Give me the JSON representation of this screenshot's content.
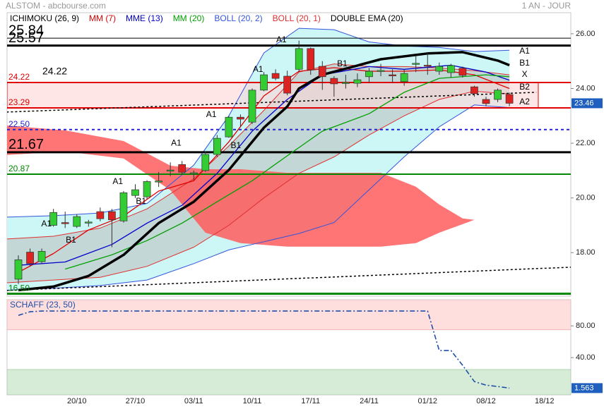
{
  "chart_data": [
    {
      "type": "candlestick",
      "title": "ALSTOM - abcbourse.com",
      "period": "1 AN - JOUR",
      "categories": [
        null,
        null,
        null,
        null,
        null,
        "20/10",
        null,
        null,
        null,
        null,
        "27/10",
        null,
        null,
        null,
        null,
        "03/11",
        null,
        null,
        null,
        null,
        "10/11",
        null,
        null,
        null,
        null,
        "17/11",
        null,
        null,
        null,
        null,
        "24/11",
        null,
        null,
        null,
        null,
        "01/12",
        null,
        null,
        null,
        null,
        "08/12",
        null,
        null,
        null,
        null,
        "18/12",
        null,
        null
      ],
      "open": [
        17.03,
        18.02,
        17.67,
        19.0,
        19.1,
        18.96,
        19.1,
        19.5,
        19.5,
        19.16,
        20.09,
        20.04,
        20.6,
        21.0,
        21.22,
        20.9,
        21.0,
        21.59,
        22.23,
        22.95,
        22.77,
        23.94,
        24.55,
        24.45,
        24.7,
        25.46,
        24.81,
        24.37,
        24.2,
        24.19,
        24.43,
        24.63,
        24.5,
        24.25,
        24.9,
        24.85,
        24.63,
        24.58,
        24.74,
        24.06,
        23.6,
        23.6,
        23.78,
        null,
        null,
        null,
        null,
        null
      ],
      "high": [
        17.9,
        18.15,
        18.15,
        19.6,
        19.5,
        19.4,
        19.2,
        19.65,
        19.6,
        20.25,
        20.5,
        20.65,
        20.95,
        21.3,
        21.35,
        21.0,
        21.7,
        22.3,
        23.0,
        23.05,
        24.0,
        24.6,
        24.7,
        24.65,
        25.75,
        25.5,
        25.0,
        24.45,
        24.5,
        24.55,
        24.75,
        24.9,
        24.7,
        24.7,
        25.2,
        25.3,
        24.95,
        24.9,
        24.8,
        24.1,
        23.7,
        24.0,
        23.85,
        null,
        null,
        null,
        null,
        null
      ],
      "low": [
        16.85,
        17.5,
        17.6,
        18.95,
        18.9,
        18.9,
        18.95,
        19.15,
        18.2,
        19.1,
        20.0,
        19.95,
        20.4,
        20.8,
        20.85,
        20.65,
        20.95,
        21.5,
        22.2,
        22.6,
        22.7,
        23.9,
        24.3,
        23.75,
        24.6,
        24.5,
        23.95,
        23.7,
        24.0,
        24.05,
        24.2,
        24.45,
        24.2,
        24.1,
        24.6,
        24.5,
        24.5,
        24.4,
        24.4,
        23.7,
        23.35,
        23.5,
        23.35,
        null,
        null,
        null,
        null,
        null
      ],
      "close": [
        17.74,
        17.6,
        18.05,
        19.47,
        19.06,
        19.32,
        19.12,
        19.24,
        19.2,
        20.19,
        20.3,
        20.6,
        20.62,
        21.02,
        20.94,
        20.92,
        21.59,
        22.18,
        22.95,
        22.88,
        23.94,
        24.5,
        24.37,
        23.83,
        25.46,
        24.68,
        24.43,
        24.17,
        24.22,
        24.32,
        24.63,
        24.66,
        24.48,
        24.55,
        24.92,
        24.83,
        24.81,
        24.84,
        24.48,
        23.81,
        23.45,
        23.94,
        23.46,
        null,
        null,
        null,
        null,
        null
      ],
      "up_color": "#33cc33",
      "down_color": "#dd2222",
      "tag_color": "#1f5fbf",
      "ylim": [
        16.41,
        26.77
      ],
      "yticks": [
        {
          "value": 26,
          "label": "26.00"
        },
        {
          "value": 24,
          "label": "24.00"
        },
        {
          "value": 22,
          "label": "22.00"
        },
        {
          "value": 20,
          "label": "20.00"
        },
        {
          "value": 18,
          "label": "18.00"
        }
      ],
      "series": [
        {
          "name": "ICHIMOKU (26, 9)",
          "kind": "cloud",
          "color": "#000000",
          "fill": "#ff5c5c",
          "fill_opacity": 0.85,
          "x": [
            -1,
            4,
            9,
            13,
            16,
            19,
            23,
            27,
            31,
            34,
            36,
            38,
            39
          ],
          "upper": [
            22.65,
            22.47,
            22.08,
            21.18,
            21.05,
            21.05,
            20.92,
            20.92,
            20.92,
            20.41,
            19.76,
            19.25,
            19.2
          ],
          "lower": [
            21.57,
            21.7,
            21.44,
            20.28,
            18.73,
            18.35,
            18.22,
            18.22,
            18.22,
            18.35,
            18.73,
            19.04,
            19.2
          ]
        },
        {
          "name": "MM (7)",
          "kind": "line",
          "color": "#e00000",
          "width": 1.3,
          "x": [
            0,
            3,
            6,
            9,
            12,
            15,
            18,
            21,
            24,
            27,
            30,
            33,
            36,
            39,
            42
          ],
          "values": [
            17.28,
            17.97,
            18.83,
            19.34,
            20.25,
            20.63,
            22.05,
            23.73,
            24.63,
            24.76,
            24.63,
            24.63,
            24.68,
            24.5,
            24.0
          ]
        },
        {
          "name": "MME (13)",
          "kind": "line",
          "color": "#0000cc",
          "width": 1.3,
          "x": [
            0,
            4,
            8,
            11,
            14,
            17,
            20,
            23,
            26,
            30,
            33,
            37,
            40,
            42
          ],
          "values": [
            17.54,
            17.66,
            18.3,
            19.08,
            19.73,
            20.9,
            22.44,
            23.6,
            24.5,
            24.8,
            24.7,
            24.85,
            24.6,
            24.3
          ]
        },
        {
          "name": "MM (20)",
          "kind": "line",
          "color": "#00a000",
          "width": 1.3,
          "x": [
            4,
            8,
            11,
            14,
            17,
            20,
            23,
            26,
            30,
            33,
            36,
            40,
            42
          ],
          "values": [
            17.4,
            17.92,
            18.44,
            19.08,
            19.86,
            20.63,
            21.54,
            22.44,
            23.08,
            23.86,
            24.37,
            24.5,
            24.43
          ]
        },
        {
          "name": "BOLL (20, 2)",
          "kind": "band",
          "color": "#3355dd",
          "fill": "#cdf7f7",
          "fill_opacity": 1,
          "x": [
            -1,
            3,
            7,
            11,
            15,
            18,
            21,
            24,
            27,
            30,
            33,
            36,
            39,
            42
          ],
          "upper": [
            19.3,
            19.35,
            19.45,
            19.8,
            21.2,
            23.0,
            25.3,
            26.2,
            26.15,
            25.7,
            25.55,
            25.5,
            25.35,
            25.4
          ],
          "lower": [
            16.63,
            16.7,
            16.8,
            17.0,
            17.6,
            18.1,
            18.4,
            18.7,
            19.1,
            20.3,
            21.5,
            22.6,
            23.4,
            23.3
          ]
        },
        {
          "name": "BOLL (20, 1)",
          "kind": "band",
          "color": "#e03030",
          "fill": "#b49c9c",
          "fill_opacity": 0.35,
          "x": [
            -1,
            3,
            7,
            11,
            15,
            18,
            21,
            24,
            27,
            30,
            33,
            36,
            39,
            42
          ],
          "upper": [
            18.5,
            18.6,
            18.9,
            19.6,
            20.7,
            21.9,
            23.2,
            24.6,
            24.9,
            24.8,
            24.8,
            24.75,
            24.65,
            24.5
          ],
          "lower": [
            16.9,
            17.0,
            17.1,
            17.5,
            18.2,
            19.0,
            20.0,
            20.9,
            21.5,
            22.3,
            23.0,
            23.6,
            23.9,
            23.8
          ]
        },
        {
          "name": "DOUBLE EMA (20)",
          "kind": "line",
          "color": "#000000",
          "width": 3.5,
          "x": [
            0,
            3,
            6,
            9,
            12,
            15,
            18,
            21,
            23,
            24,
            26,
            29,
            31,
            35,
            38,
            41,
            42
          ],
          "values": [
            16.63,
            16.76,
            17.15,
            17.92,
            19.08,
            19.86,
            21.02,
            22.57,
            23.34,
            24.0,
            24.5,
            24.84,
            25.07,
            25.28,
            25.33,
            25.02,
            24.85
          ]
        }
      ],
      "levels": [
        {
          "value": 25.84,
          "label": "25.84",
          "color": "#000000",
          "width": 1,
          "size": "big"
        },
        {
          "value": 25.57,
          "label": "25.57",
          "color": "#000000",
          "width": 3,
          "size": "big"
        },
        {
          "value": 24.22,
          "label": "24.22",
          "note": "24.22",
          "color": "#e00000",
          "width": 2,
          "size": "small",
          "zone": true
        },
        {
          "value": 23.29,
          "label": "23.29",
          "color": "#e00000",
          "width": 2,
          "size": "small",
          "zone": true
        },
        {
          "value": 22.5,
          "label": "22.50",
          "color": "#2222cc",
          "width": 2,
          "size": "small",
          "dash": true
        },
        {
          "value": 21.67,
          "label": "21.67",
          "color": "#000000",
          "width": 3,
          "size": "big"
        },
        {
          "value": 20.87,
          "label": "20.87",
          "color": "#008800",
          "width": 2,
          "size": "small"
        },
        {
          "value": 16.5,
          "label": "16.50",
          "color": "#008800",
          "width": 3,
          "size": "small"
        }
      ],
      "zone_fill": "#ffd6d6",
      "trendlines": [
        {
          "x": [
            -1,
            44.3
          ],
          "values": [
            23.14,
            23.86
          ]
        },
        {
          "x": [
            -1,
            49
          ],
          "values": [
            16.62,
            17.5
          ]
        }
      ],
      "annotations": [
        {
          "text": "A1",
          "x": 2.4,
          "y": 19.04
        },
        {
          "text": "B1",
          "x": 4.5,
          "y": 18.45
        },
        {
          "text": "A1",
          "x": 8.5,
          "y": 20.59
        },
        {
          "text": "B1",
          "x": 10.5,
          "y": 19.87
        },
        {
          "text": "A1",
          "x": 13.5,
          "y": 22.0
        },
        {
          "text": "A1",
          "x": 16.5,
          "y": 23.04
        },
        {
          "text": "B1",
          "x": 18.6,
          "y": 21.9
        },
        {
          "text": "A1",
          "x": 20.5,
          "y": 24.69
        },
        {
          "text": "A1",
          "x": 22.5,
          "y": 25.77
        },
        {
          "text": "B1",
          "x": 27.7,
          "y": 24.89
        },
        {
          "text": "A1",
          "x": 43.3,
          "y": 25.36
        },
        {
          "text": "B1",
          "x": 43.3,
          "y": 24.92
        },
        {
          "text": "X",
          "x": 43.3,
          "y": 24.51
        },
        {
          "text": "B2",
          "x": 43.3,
          "y": 24.04
        },
        {
          "text": "A2",
          "x": 43.3,
          "y": 23.5
        }
      ]
    },
    {
      "type": "line",
      "title": "SCHAFF (23, 50)",
      "color": "#1f4fa8",
      "values": [
        93.3,
        97.8,
        98.7,
        98.7,
        98.7,
        98.7,
        98.7,
        98.7,
        98.7,
        98.7,
        98.7,
        98.7,
        98.7,
        98.7,
        98.7,
        98.7,
        98.7,
        98.7,
        98.7,
        98.7,
        98.7,
        98.7,
        98.7,
        98.7,
        98.7,
        98.7,
        98.7,
        98.7,
        98.7,
        98.7,
        98.7,
        98.7,
        98.7,
        98.7,
        98.7,
        98.7,
        48.9,
        48.9,
        30.2,
        9.8,
        5.3,
        3.6,
        1.563,
        null,
        null,
        null,
        null,
        null
      ],
      "ylim": [
        -7,
        113
      ],
      "yticks": [
        {
          "value": 80,
          "label": "80.00"
        },
        {
          "value": 40,
          "label": "40.00"
        }
      ],
      "overbought": 75,
      "overbought_fill": "#ffdede",
      "oversold": 25,
      "oversold_fill": "#d6ecd6",
      "tag_color": "#1f5fbf"
    }
  ]
}
